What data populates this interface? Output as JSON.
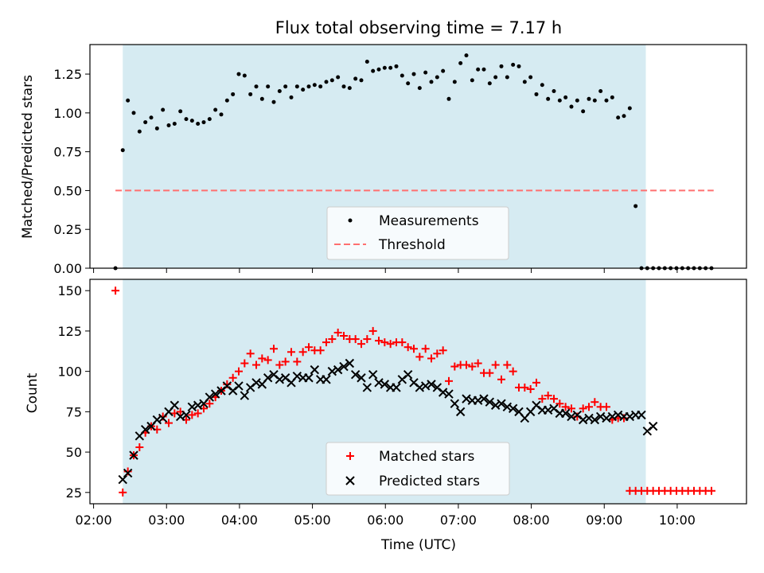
{
  "chart_data": [
    {
      "type": "scatter",
      "title": "Flux total observing time = 7.17 h",
      "xlabel": "",
      "ylabel": "Matched/Predicted stars",
      "ylim": [
        0,
        1.44
      ],
      "xlim": [
        1.95,
        10.95
      ],
      "yticks": [
        "0.00",
        "0.25",
        "0.50",
        "0.75",
        "1.00",
        "1.25"
      ],
      "shaded_span": {
        "x0": 2.4,
        "x1": 9.57,
        "color": "#add8e6"
      },
      "threshold": {
        "y": 0.5,
        "x0": 2.3,
        "x1": 10.5,
        "color": "#ff7070"
      },
      "legend": {
        "placement": "lower-center",
        "entries": [
          "Measurements",
          "Threshold"
        ]
      },
      "series": [
        {
          "name": "Measurements",
          "marker": "dot",
          "color": "#000000",
          "x": [
            2.3,
            2.4,
            2.47,
            2.55,
            2.63,
            2.71,
            2.79,
            2.87,
            2.95,
            3.03,
            3.11,
            3.19,
            3.27,
            3.35,
            3.43,
            3.51,
            3.59,
            3.67,
            3.75,
            3.83,
            3.91,
            3.99,
            4.07,
            4.15,
            4.23,
            4.31,
            4.39,
            4.47,
            4.55,
            4.63,
            4.71,
            4.79,
            4.87,
            4.95,
            5.03,
            5.11,
            5.19,
            5.27,
            5.35,
            5.43,
            5.51,
            5.59,
            5.67,
            5.75,
            5.83,
            5.91,
            5.99,
            6.07,
            6.15,
            6.23,
            6.31,
            6.39,
            6.47,
            6.55,
            6.63,
            6.71,
            6.79,
            6.87,
            6.95,
            7.03,
            7.11,
            7.19,
            7.27,
            7.35,
            7.43,
            7.51,
            7.59,
            7.67,
            7.75,
            7.83,
            7.91,
            7.99,
            8.07,
            8.15,
            8.23,
            8.31,
            8.39,
            8.47,
            8.55,
            8.63,
            8.71,
            8.79,
            8.87,
            8.95,
            9.03,
            9.11,
            9.19,
            9.27,
            9.35,
            9.43,
            9.51,
            9.59,
            9.67,
            9.75,
            9.83,
            9.91,
            9.99,
            10.07,
            10.15,
            10.23,
            10.31,
            10.39,
            10.47
          ],
          "y": [
            0.0,
            0.76,
            1.08,
            1.0,
            0.88,
            0.94,
            0.97,
            0.9,
            1.02,
            0.92,
            0.93,
            1.01,
            0.96,
            0.95,
            0.93,
            0.94,
            0.96,
            1.02,
            0.99,
            1.08,
            1.12,
            1.25,
            1.24,
            1.12,
            1.17,
            1.09,
            1.17,
            1.07,
            1.14,
            1.17,
            1.1,
            1.17,
            1.15,
            1.17,
            1.18,
            1.17,
            1.2,
            1.21,
            1.23,
            1.17,
            1.16,
            1.22,
            1.21,
            1.33,
            1.27,
            1.28,
            1.29,
            1.29,
            1.3,
            1.24,
            1.19,
            1.25,
            1.16,
            1.26,
            1.2,
            1.23,
            1.27,
            1.09,
            1.2,
            1.32,
            1.37,
            1.21,
            1.28,
            1.28,
            1.19,
            1.23,
            1.3,
            1.23,
            1.31,
            1.3,
            1.2,
            1.23,
            1.12,
            1.18,
            1.09,
            1.14,
            1.08,
            1.1,
            1.04,
            1.08,
            1.01,
            1.09,
            1.08,
            1.14,
            1.08,
            1.1,
            0.97,
            0.98,
            1.03,
            0.4,
            0.0,
            0.0,
            0.0,
            0.0,
            0.0,
            0.0,
            0.0,
            0.0,
            0.0,
            0.0,
            0.0,
            0.0,
            0.0
          ]
        }
      ]
    },
    {
      "type": "scatter",
      "title": "",
      "xlabel": "Time (UTC)",
      "ylabel": "Count",
      "ylim": [
        18,
        157
      ],
      "xlim": [
        1.95,
        10.95
      ],
      "yticks": [
        "25",
        "50",
        "75",
        "100",
        "125",
        "150"
      ],
      "xticks": [
        "02:00",
        "03:00",
        "04:00",
        "05:00",
        "06:00",
        "07:00",
        "08:00",
        "09:00",
        "10:00"
      ],
      "shaded_span": {
        "x0": 2.4,
        "x1": 9.57,
        "color": "#add8e6"
      },
      "legend": {
        "placement": "lower-center",
        "entries": [
          "Matched stars",
          "Predicted stars"
        ]
      },
      "series": [
        {
          "name": "Matched stars",
          "marker": "plus",
          "color": "#ff0000",
          "x": [
            2.3,
            2.4,
            2.47,
            2.55,
            2.63,
            2.71,
            2.79,
            2.87,
            2.95,
            3.03,
            3.11,
            3.19,
            3.27,
            3.35,
            3.43,
            3.51,
            3.59,
            3.67,
            3.75,
            3.83,
            3.91,
            3.99,
            4.07,
            4.15,
            4.23,
            4.31,
            4.39,
            4.47,
            4.55,
            4.63,
            4.71,
            4.79,
            4.87,
            4.95,
            5.03,
            5.11,
            5.19,
            5.27,
            5.35,
            5.43,
            5.51,
            5.59,
            5.67,
            5.75,
            5.83,
            5.91,
            5.99,
            6.07,
            6.15,
            6.23,
            6.31,
            6.39,
            6.47,
            6.55,
            6.63,
            6.71,
            6.79,
            6.87,
            6.95,
            7.03,
            7.11,
            7.19,
            7.27,
            7.35,
            7.43,
            7.51,
            7.59,
            7.67,
            7.75,
            7.83,
            7.91,
            7.99,
            8.07,
            8.15,
            8.23,
            8.31,
            8.39,
            8.47,
            8.55,
            8.63,
            8.71,
            8.79,
            8.87,
            8.95,
            9.03,
            9.11,
            9.19,
            9.27,
            9.35,
            9.43,
            9.51,
            9.59,
            9.67,
            9.75,
            9.83,
            9.91,
            9.99,
            10.07,
            10.15,
            10.23,
            10.31,
            10.39,
            10.47
          ],
          "y": [
            150,
            25,
            38,
            48,
            53,
            62,
            66,
            64,
            72,
            68,
            74,
            75,
            70,
            73,
            74,
            77,
            80,
            84,
            88,
            92,
            96,
            100,
            105,
            111,
            104,
            108,
            107,
            114,
            104,
            106,
            112,
            106,
            112,
            115,
            113,
            113,
            118,
            120,
            124,
            122,
            120,
            120,
            117,
            120,
            125,
            119,
            118,
            117,
            118,
            118,
            115,
            114,
            109,
            114,
            108,
            111,
            113,
            94,
            103,
            104,
            104,
            103,
            105,
            99,
            99,
            104,
            95,
            104,
            100,
            90,
            90,
            89,
            93,
            83,
            85,
            83,
            80,
            78,
            77,
            72,
            77,
            78,
            81,
            78,
            78,
            70,
            71,
            71,
            26,
            26,
            26,
            26,
            26,
            26,
            26,
            26,
            26,
            26,
            26,
            26,
            26,
            26,
            26
          ]
        },
        {
          "name": "Predicted stars",
          "marker": "x",
          "color": "#000000",
          "x": [
            2.4,
            2.47,
            2.55,
            2.63,
            2.71,
            2.79,
            2.87,
            2.95,
            3.03,
            3.11,
            3.19,
            3.27,
            3.35,
            3.43,
            3.51,
            3.59,
            3.67,
            3.75,
            3.83,
            3.91,
            3.99,
            4.07,
            4.15,
            4.23,
            4.31,
            4.39,
            4.47,
            4.55,
            4.63,
            4.71,
            4.79,
            4.87,
            4.95,
            5.03,
            5.11,
            5.19,
            5.27,
            5.35,
            5.43,
            5.51,
            5.59,
            5.67,
            5.75,
            5.83,
            5.91,
            5.99,
            6.07,
            6.15,
            6.23,
            6.31,
            6.39,
            6.47,
            6.55,
            6.63,
            6.71,
            6.79,
            6.87,
            6.95,
            7.03,
            7.11,
            7.19,
            7.27,
            7.35,
            7.43,
            7.51,
            7.59,
            7.67,
            7.75,
            7.83,
            7.91,
            7.99,
            8.07,
            8.15,
            8.23,
            8.31,
            8.39,
            8.47,
            8.55,
            8.63,
            8.71,
            8.79,
            8.87,
            8.95,
            9.03,
            9.11,
            9.19,
            9.27,
            9.35,
            9.43,
            9.51,
            9.59,
            9.67
          ],
          "y": [
            33,
            37,
            48,
            60,
            64,
            66,
            70,
            71,
            75,
            79,
            72,
            73,
            78,
            79,
            80,
            84,
            86,
            88,
            91,
            88,
            91,
            85,
            90,
            93,
            92,
            96,
            98,
            95,
            96,
            93,
            97,
            96,
            96,
            101,
            95,
            95,
            100,
            101,
            103,
            105,
            98,
            96,
            90,
            98,
            93,
            92,
            90,
            90,
            95,
            98,
            93,
            90,
            91,
            92,
            90,
            87,
            86,
            80,
            75,
            83,
            82,
            82,
            83,
            81,
            79,
            80,
            78,
            77,
            75,
            71,
            75,
            79,
            76,
            76,
            77,
            74,
            74,
            72,
            73,
            70,
            71,
            70,
            72,
            71,
            72,
            73,
            72,
            72,
            73,
            73,
            63,
            66
          ]
        }
      ]
    }
  ]
}
